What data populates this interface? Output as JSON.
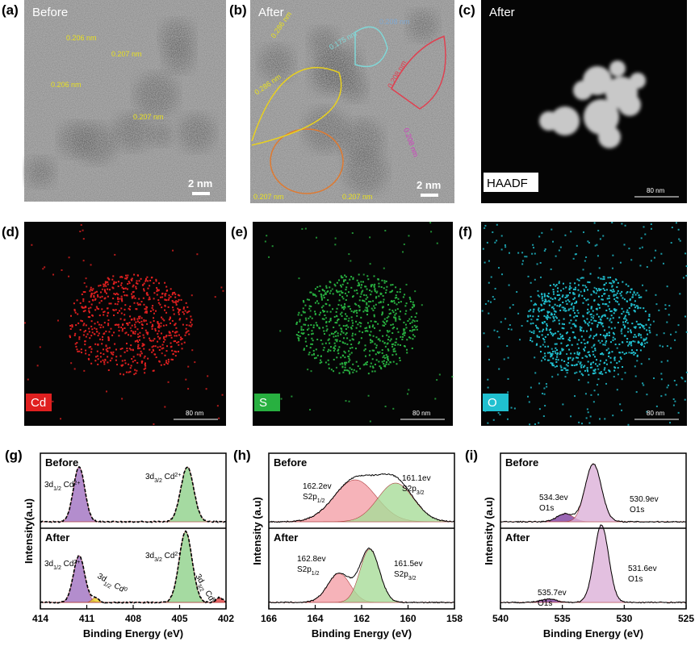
{
  "panels": [
    {
      "label": "(a)",
      "caption": "Before",
      "scale_bar": "2 nm",
      "spacings": [
        "0.206 nm",
        "0.207 nm",
        "0.206 nm",
        "0.207 nm"
      ]
    },
    {
      "label": "(b)",
      "caption": "After",
      "scale_bar": "2 nm",
      "spacings": [
        "0.286 nm",
        "0.286 nm",
        "0.175 nm",
        "0.208 nm",
        "0.208 nm",
        "0.208 nm",
        "0.207 nm",
        "0.207 nm"
      ]
    },
    {
      "label": "(c)",
      "caption": "After",
      "tag": "HAADF",
      "scale_bar": "80 nm"
    },
    {
      "label": "(d)",
      "tag": "Cd",
      "scale_bar": "80 nm"
    },
    {
      "label": "(e)",
      "tag": "S",
      "scale_bar": "80 nm"
    },
    {
      "label": "(f)",
      "tag": "O",
      "scale_bar": "80 nm"
    }
  ],
  "chart_data": [
    {
      "type": "line",
      "title": "(g)",
      "xlabel": "Binding Energy (eV)",
      "ylabel": "Intensity(a.u)",
      "xlim": [
        414,
        402
      ],
      "xticks": [
        414,
        411,
        408,
        405,
        402
      ],
      "top": {
        "title": "Before",
        "annotations": [
          [
            [
              "3d",
              "1/2",
              " Cd",
              "2+"
            ]
          ],
          [
            [
              "3d",
              "3/2",
              " Cd",
              "2+"
            ]
          ]
        ]
      },
      "bottom": {
        "title": "After",
        "annotations": [
          [
            [
              "3d",
              "1/2",
              " Cd",
              "2+"
            ]
          ],
          [
            [
              "3d",
              "1/2",
              " Cd",
              "0"
            ]
          ],
          [
            [
              "3d",
              "3/2",
              " Cd",
              "2+"
            ]
          ],
          [
            [
              "3d",
              "3/2",
              " Cd",
              "0"
            ]
          ]
        ]
      }
    },
    {
      "type": "line",
      "title": "(h)",
      "xlabel": "Binding Energy (eV)",
      "ylabel": "Intensity (a.u)",
      "xlim": [
        166,
        158
      ],
      "xticks": [
        166,
        164,
        162,
        160,
        158
      ],
      "top": {
        "title": "Before",
        "annotations": [
          [
            [
              "162.2ev"
            ],
            [
              "S2p",
              "1/2"
            ]
          ],
          [
            [
              "161.1ev"
            ],
            [
              "S2p",
              "3/2"
            ]
          ]
        ]
      },
      "bottom": {
        "title": "After",
        "annotations": [
          [
            [
              "162.8ev"
            ],
            [
              "S2p",
              "1/2"
            ]
          ],
          [
            [
              "161.5ev"
            ],
            [
              "S2p",
              "3/2"
            ]
          ]
        ]
      }
    },
    {
      "type": "line",
      "title": "(i)",
      "xlabel": "Binding Energy (eV)",
      "ylabel": "Intensity (a.u)",
      "xlim": [
        540,
        525
      ],
      "xticks": [
        540,
        535,
        530,
        525
      ],
      "top": {
        "title": "Before",
        "annotations": [
          [
            [
              "534.3ev"
            ],
            [
              "O1s"
            ]
          ],
          [
            [
              "530.9ev"
            ],
            [
              "O1s"
            ]
          ]
        ]
      },
      "bottom": {
        "title": "After",
        "annotations": [
          [
            [
              "535.7ev"
            ],
            [
              "O1s"
            ]
          ],
          [
            [
              "531.6ev"
            ],
            [
              "O1s"
            ]
          ]
        ]
      }
    }
  ]
}
